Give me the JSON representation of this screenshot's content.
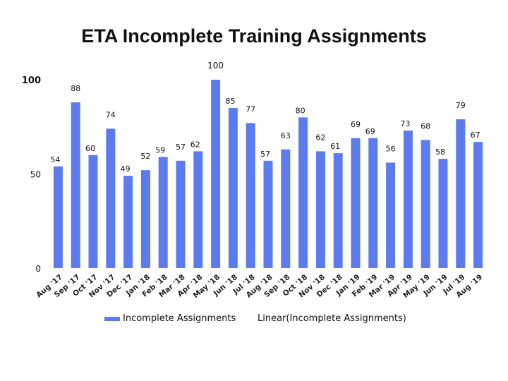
{
  "chart_data": {
    "type": "bar",
    "title": "ETA Incomplete Training Assignments",
    "categories": [
      "Aug '17",
      "Sep '17",
      "Oct '17",
      "Nov '17",
      "Dec '17",
      "Jan '18",
      "Feb '18",
      "Mar '18",
      "Apr '18",
      "May '18",
      "Jun '18",
      "Jul '18",
      "Aug '18",
      "Sep '18",
      "Oct '18",
      "Nov '18",
      "Dec '18",
      "Jan '19",
      "Feb '19",
      "Mar '19",
      "Apr '19",
      "May '19",
      "Jun '19",
      "Jul '19",
      "Aug '19"
    ],
    "series": [
      {
        "name": "Incomplete Assignments",
        "values": [
          54,
          88,
          60,
          74,
          49,
          52,
          59,
          57,
          62,
          100,
          85,
          77,
          57,
          63,
          80,
          62,
          61,
          69,
          69,
          56,
          73,
          68,
          58,
          79,
          67
        ]
      }
    ],
    "ylim": [
      0,
      100
    ],
    "yticks": [
      "0",
      "50",
      "100"
    ],
    "grid": false,
    "bar_color": "#5b7bef",
    "legend": {
      "position": "bottom",
      "entries": [
        "Incomplete Assignments",
        "Linear(Incomplete Assignments)"
      ]
    }
  }
}
